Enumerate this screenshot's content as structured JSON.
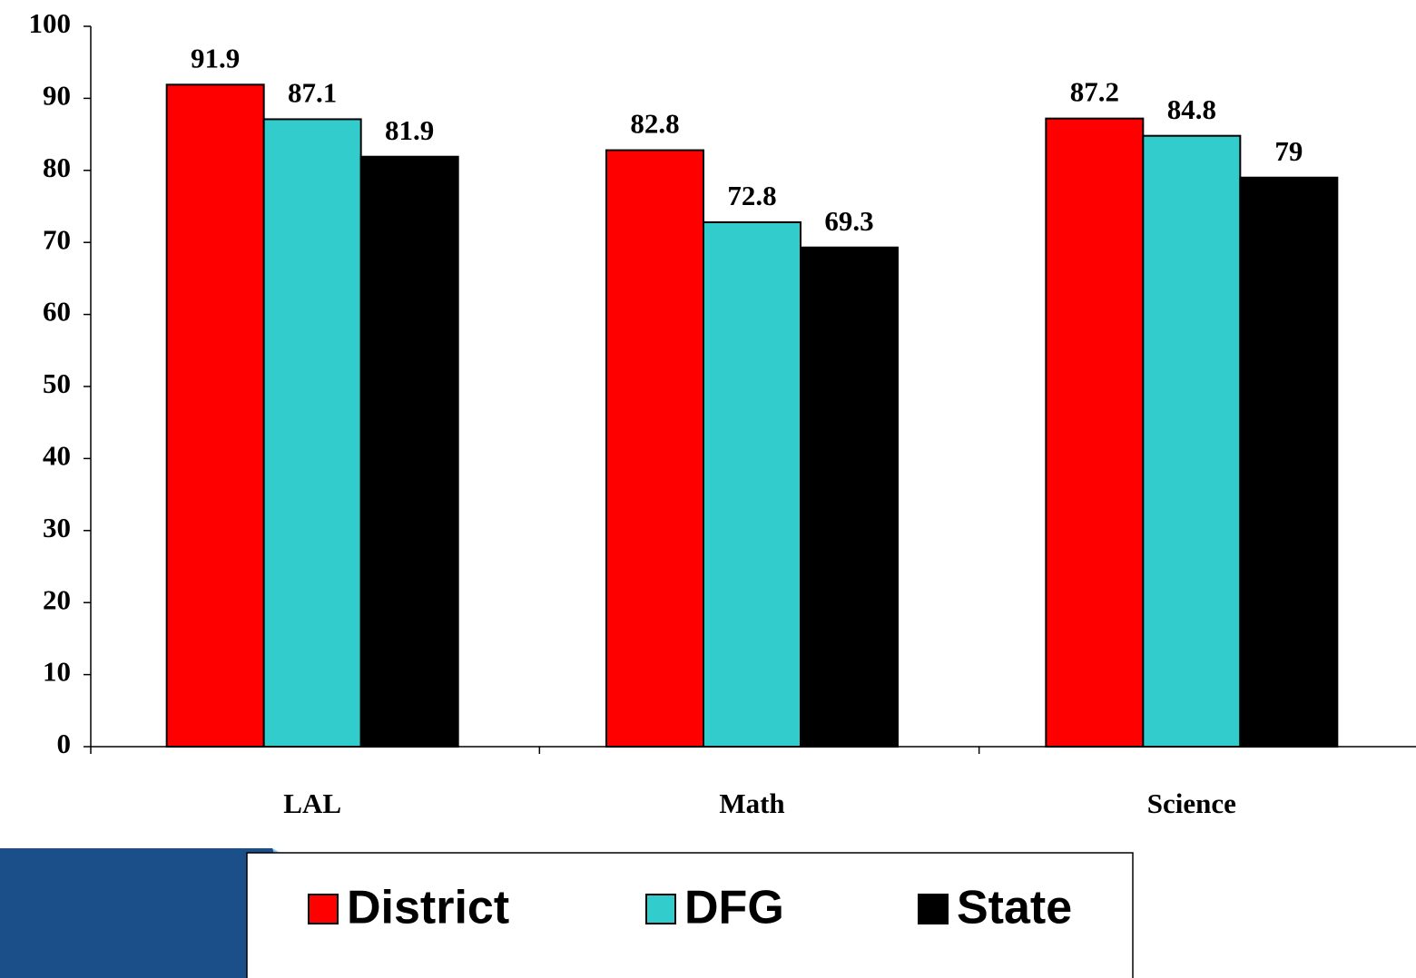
{
  "chart_data": {
    "type": "bar",
    "categories": [
      "LAL",
      "Math",
      "Science"
    ],
    "series": [
      {
        "name": "District",
        "color": "#ff0000",
        "values": [
          91.9,
          82.8,
          87.2
        ]
      },
      {
        "name": "DFG",
        "color": "#33cccc",
        "values": [
          87.1,
          72.8,
          84.8
        ]
      },
      {
        "name": "State",
        "color": "#000000",
        "values": [
          81.9,
          69.3,
          79
        ]
      }
    ],
    "ylim": [
      0,
      100
    ],
    "yticks": [
      0,
      10,
      20,
      30,
      40,
      50,
      60,
      70,
      80,
      90,
      100
    ],
    "legend": "bottom"
  }
}
